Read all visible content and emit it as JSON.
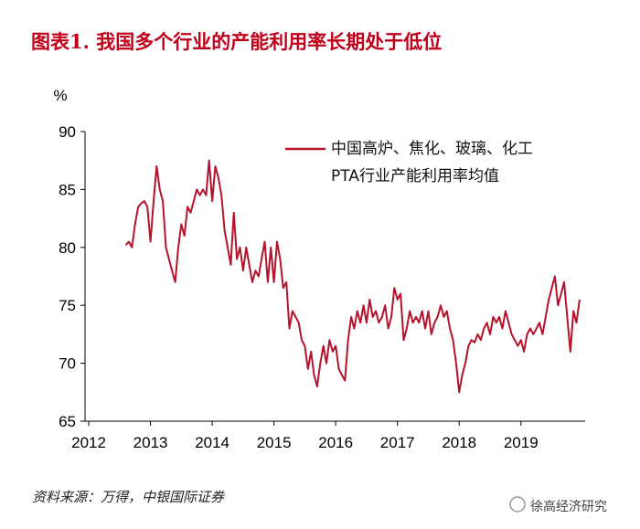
{
  "chart_data": {
    "type": "line",
    "title": "图表1. 我国多个行业的产能利用率长期处于低位",
    "y_label": "%",
    "source": "资料来源：万得，中银国际证券",
    "watermark": "徐高经济研究",
    "x": [
      2012.6,
      2012.65,
      2012.7,
      2012.75,
      2012.8,
      2012.85,
      2012.9,
      2012.95,
      2013.0,
      2013.05,
      2013.1,
      2013.15,
      2013.2,
      2013.25,
      2013.3,
      2013.35,
      2013.4,
      2013.45,
      2013.5,
      2013.55,
      2013.6,
      2013.65,
      2013.7,
      2013.75,
      2013.8,
      2013.85,
      2013.9,
      2013.95,
      2014.0,
      2014.05,
      2014.1,
      2014.15,
      2014.2,
      2014.25,
      2014.3,
      2014.35,
      2014.4,
      2014.45,
      2014.5,
      2014.55,
      2014.6,
      2014.65,
      2014.7,
      2014.75,
      2014.8,
      2014.85,
      2014.9,
      2014.95,
      2015.0,
      2015.05,
      2015.1,
      2015.15,
      2015.2,
      2015.25,
      2015.3,
      2015.35,
      2015.4,
      2015.45,
      2015.5,
      2015.55,
      2015.6,
      2015.65,
      2015.7,
      2015.75,
      2015.8,
      2015.85,
      2015.9,
      2015.95,
      2016.0,
      2016.05,
      2016.1,
      2016.15,
      2016.2,
      2016.25,
      2016.3,
      2016.35,
      2016.4,
      2016.45,
      2016.5,
      2016.55,
      2016.6,
      2016.65,
      2016.7,
      2016.75,
      2016.8,
      2016.85,
      2016.9,
      2016.95,
      2017.0,
      2017.05,
      2017.1,
      2017.15,
      2017.2,
      2017.25,
      2017.3,
      2017.35,
      2017.4,
      2017.45,
      2017.5,
      2017.55,
      2017.6,
      2017.65,
      2017.7,
      2017.75,
      2017.8,
      2017.85,
      2017.9,
      2017.95,
      2018.0,
      2018.05,
      2018.1,
      2018.15,
      2018.2,
      2018.25,
      2018.3,
      2018.35,
      2018.4,
      2018.45,
      2018.5,
      2018.55,
      2018.6,
      2018.65,
      2018.7,
      2018.75,
      2018.8,
      2018.85,
      2018.9,
      2018.95,
      2019.0,
      2019.05,
      2019.1,
      2019.15,
      2019.2,
      2019.25,
      2019.3,
      2019.35,
      2019.4,
      2019.45,
      2019.5,
      2019.55,
      2019.6,
      2019.65,
      2019.7,
      2019.75,
      2019.8,
      2019.85,
      2019.9,
      2019.95
    ],
    "series": [
      {
        "name": "中国高炉、焦化、玻璃、化工PTA行业产能利用率均值",
        "color": "#b5132b",
        "values": [
          80.2,
          80.5,
          80.0,
          82,
          83.5,
          83.8,
          84,
          83.5,
          80.5,
          84,
          87,
          85,
          84,
          80,
          79,
          78,
          77,
          80,
          82,
          81,
          83.5,
          83,
          84,
          85,
          84.5,
          85,
          84.5,
          87.5,
          84,
          87,
          86,
          84.5,
          81.5,
          80,
          78.5,
          83,
          79,
          80,
          78,
          80,
          78.5,
          77,
          78,
          77.5,
          79,
          80.5,
          77,
          80,
          77,
          80.5,
          79,
          76.5,
          77,
          73,
          74.5,
          74,
          73.5,
          72,
          71.5,
          69.5,
          71,
          69,
          68,
          70,
          71.5,
          70,
          72,
          71,
          71.5,
          69.5,
          69,
          68.5,
          72,
          74,
          73,
          74.5,
          73.5,
          75,
          73.5,
          75.5,
          74,
          74.5,
          73.5,
          74,
          75,
          73,
          74,
          76.5,
          75.5,
          76,
          72,
          73,
          74.5,
          73.5,
          74,
          73.5,
          74.5,
          73,
          74.5,
          72.5,
          73.5,
          74,
          75,
          74,
          74.5,
          73,
          72,
          70,
          67.5,
          69,
          70,
          71.5,
          72,
          71.8,
          72.5,
          72,
          73,
          73.5,
          72.5,
          74,
          73.5,
          74,
          73,
          74.5,
          73.5,
          72.5,
          72,
          71.5,
          72,
          71,
          72.5,
          73,
          72.5,
          73,
          73.5,
          72.5,
          74,
          75.5,
          76.5,
          77.5,
          75,
          76,
          77,
          74,
          71,
          74.5,
          73.5,
          75.5
        ]
      }
    ],
    "xlim": [
      2011.94,
      2020.04
    ],
    "xticks": [
      2012,
      2013,
      2014,
      2015,
      2016,
      2017,
      2018,
      2019
    ],
    "ylim": [
      65,
      90
    ],
    "yticks": [
      65,
      70,
      75,
      80,
      85,
      90
    ]
  }
}
